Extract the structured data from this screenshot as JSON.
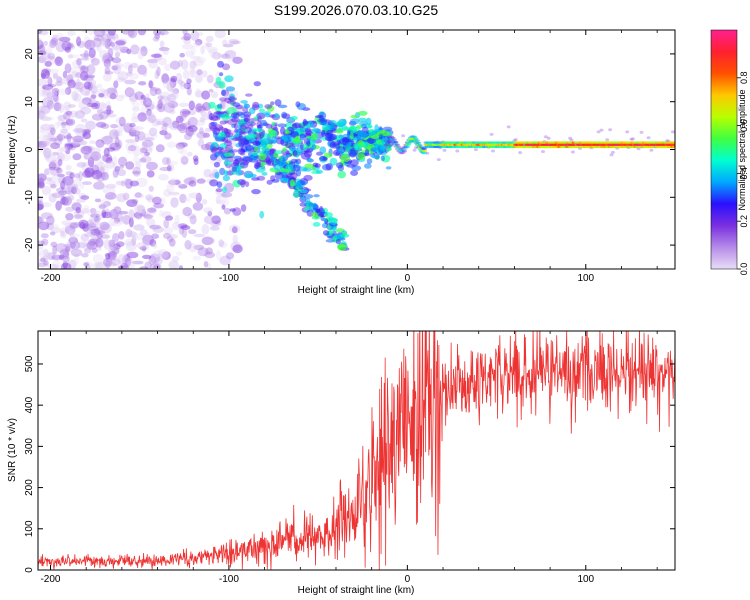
{
  "figure": {
    "title": "S199.2026.070.03.10.G25"
  },
  "chart_data": [
    {
      "type": "heatmap",
      "name": "spectrogram",
      "xlabel": "Height of straight line (km)",
      "ylabel": "Frequency (Hz)",
      "xlim": [
        -207,
        150
      ],
      "ylim": [
        -25,
        25
      ],
      "x_ticks": [
        -200,
        -100,
        0,
        100
      ],
      "x_tick_labels": [
        "-200",
        "-100",
        "0",
        "100"
      ],
      "y_ticks": [
        -20,
        -10,
        0,
        10,
        20
      ],
      "y_tick_labels": [
        "-20",
        "-10",
        "0",
        "10",
        "20"
      ],
      "colorbar": {
        "label": "Normalized spectral amplitude",
        "range": [
          0,
          1
        ],
        "ticks": [
          0.0,
          0.2,
          0.4,
          0.6,
          0.8
        ],
        "tick_labels": [
          "0.0",
          "0.2",
          "0.4",
          "0.6",
          "0.8"
        ],
        "stops": [
          "#e8ddf7",
          "#b58be8",
          "#7a2fe0",
          "#2a10ff",
          "#00a8ff",
          "#00ffd0",
          "#40ff40",
          "#b8ff00",
          "#ffc800",
          "#ff5000",
          "#ff2030",
          "#ff2090"
        ]
      },
      "features": {
        "noise_region_x": [
          -207,
          -95
        ],
        "transition_region_x": [
          -110,
          -10
        ],
        "carrier_line_x": [
          -10,
          150
        ],
        "carrier_frequency_hz": 1.0,
        "carrier_peak_amplitude": 0.9
      }
    },
    {
      "type": "line",
      "name": "snr",
      "xlabel": "Height of straight line (km)",
      "ylabel": "SNR (10 * v/v)",
      "xlim": [
        -207,
        150
      ],
      "ylim": [
        0,
        580
      ],
      "x_ticks": [
        -200,
        -100,
        0,
        100
      ],
      "x_tick_labels": [
        "-200",
        "-100",
        "0",
        "100"
      ],
      "y_ticks": [
        0,
        100,
        200,
        300,
        400,
        500
      ],
      "y_tick_labels": [
        "0",
        "100",
        "200",
        "300",
        "400",
        "500"
      ],
      "color": "#ee3333",
      "series": [
        {
          "name": "SNR",
          "profile": {
            "x": [
              -207,
              -150,
              -120,
              -100,
              -80,
              -60,
              -40,
              -30,
              -20,
              -10,
              0,
              10,
              20,
              30,
              40,
              60,
              80,
              100,
              120,
              150
            ],
            "y": [
              20,
              22,
              28,
              40,
              60,
              80,
              100,
              140,
              200,
              280,
              300,
              380,
              420,
              450,
              470,
              475,
              480,
              485,
              480,
              480
            ]
          }
        }
      ]
    }
  ]
}
